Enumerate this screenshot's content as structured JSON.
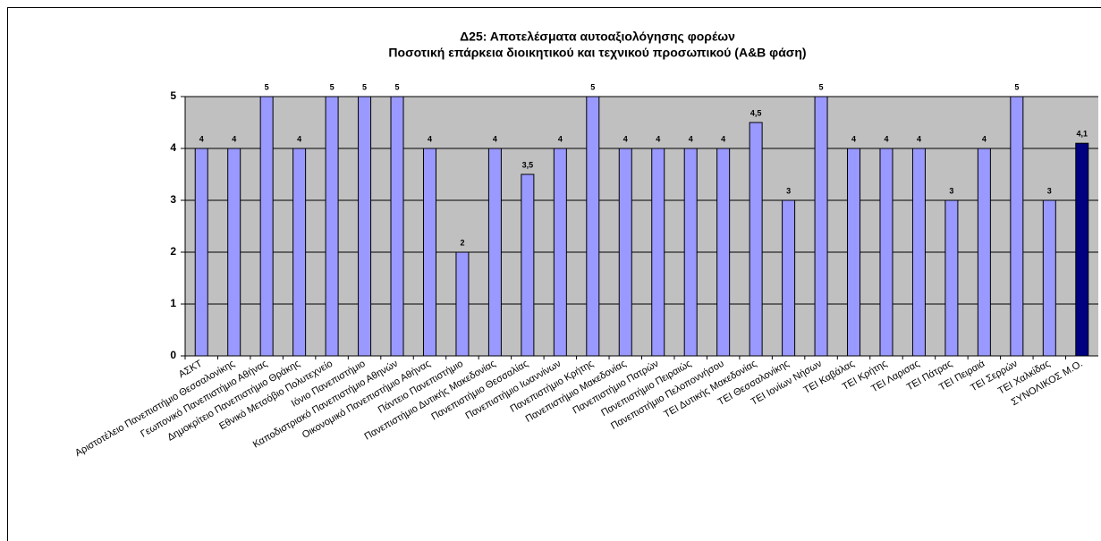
{
  "chart_data": {
    "type": "bar",
    "title": "Δ25: Αποτελέσματα αυτοαξιολόγησης φορέων",
    "subtitle": "Ποσοτική επάρκεια διοικητικού και τεχνικού προσωπικού (Α&Β φάση)",
    "categories": [
      "ΑΣΚΤ",
      "Αριστοτέλειο Πανεπιστήμιο Θεσσαλονίκης",
      "Γεωπονικό Πανεπιστήμιο Αθήνας",
      "Δημοκρίτειο Πανεπιστήμιο Θράκης",
      "Εθνικό Μετσόβιο Πολυτεχνείο",
      "Ιόνιο Πανεπιστήμιο",
      "Καποδιστριακό Πανεπιστήμιο Αθηνών",
      "Οικονομικό Πανεπιστήμιο Αθήνας",
      "Πάντειο Πανεπιστήμιο",
      "Πανεπιστήμιο Δυτικής Μακεδονίας",
      "Πανεπιστήμιο Θεσσαλίας",
      "Πανεπιστήμιο Ιωαννίνων",
      "Πανεπιστήμιο Κρήτης",
      "Πανεπιστήμιο Μακεδονίας",
      "Πανεπιστήμιο Πατρών",
      "Πανεπιστήμιο Πειραιώς",
      "Πανεπιστήμιο Πελοποννήσου",
      "ΤΕΙ Δυτικής Μακεδονίας",
      "ΤΕΙ Θεσσαλονίκης",
      "ΤΕΙ Ιονίων Νήσων",
      "ΤΕΙ Καβάλας",
      "ΤΕΙ Κρήτης",
      "ΤΕΙ Λαρισας",
      "ΤΕΙ Πάτρας",
      "ΤΕΙ Πειραιά",
      "ΤΕΙ Σερρών",
      "ΤΕΙ Χαλκίδας",
      "ΣΥΝΟΛΙΚΟΣ Μ.Ο."
    ],
    "values": [
      4,
      4,
      5,
      4,
      5,
      5,
      5,
      4,
      2,
      4,
      3.5,
      4,
      5,
      4,
      4,
      4,
      4,
      4.5,
      3,
      5,
      4,
      4,
      4,
      3,
      4,
      5,
      3,
      4.1
    ],
    "value_labels": [
      "4",
      "4",
      "5",
      "4",
      "5",
      "5",
      "5",
      "4",
      "2",
      "4",
      "3,5",
      "4",
      "5",
      "4",
      "4",
      "4",
      "4",
      "4,5",
      "3",
      "5",
      "4",
      "4",
      "4",
      "3",
      "4",
      "5",
      "3",
      "4,1"
    ],
    "colors": [
      "#9999ff",
      "#9999ff",
      "#9999ff",
      "#9999ff",
      "#9999ff",
      "#9999ff",
      "#9999ff",
      "#9999ff",
      "#9999ff",
      "#9999ff",
      "#9999ff",
      "#9999ff",
      "#9999ff",
      "#9999ff",
      "#9999ff",
      "#9999ff",
      "#9999ff",
      "#9999ff",
      "#9999ff",
      "#9999ff",
      "#9999ff",
      "#9999ff",
      "#9999ff",
      "#9999ff",
      "#9999ff",
      "#9999ff",
      "#9999ff",
      "#000080"
    ],
    "ylim": [
      0,
      5
    ],
    "yticks": [
      0,
      1,
      2,
      3,
      4,
      5
    ],
    "grid": true
  }
}
